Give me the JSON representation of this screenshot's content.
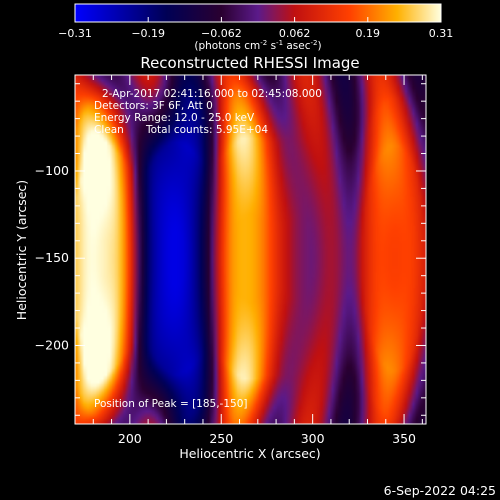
{
  "chart_data": {
    "type": "heatmap",
    "title": "Reconstructed RHESSI Image",
    "xlabel": "Heliocentric X (arcsec)",
    "ylabel": "Heliocentric Y (arcsec)",
    "xlim": [
      170,
      362
    ],
    "ylim": [
      -245,
      -45
    ],
    "xticks": [
      200,
      250,
      300,
      350
    ],
    "yticks": [
      -100,
      -150,
      -200
    ],
    "colorbar": {
      "range": [
        -0.31,
        0.31
      ],
      "ticks": [
        "-0.31",
        "-0.19",
        "-0.062",
        "0.062",
        "0.19",
        "0.31"
      ],
      "unit_label": "(photons cm",
      "unit_exp1": "-2",
      "unit_mid": " s",
      "unit_exp2": "-1",
      "unit_end": " asec",
      "unit_exp3": "-2",
      "unit_close": ")",
      "colormap": "blue-black-purple-red-orange-yellow-white"
    },
    "annotations": {
      "time_range": "2-Apr-2017 02:41:16.000 to 02:45:08.000",
      "detectors": "Detectors: 3F 6F, Att 0",
      "energy": "Energy Range: 12.0 - 25.0 keV",
      "clean_label": "Clean",
      "total_counts": "Total counts: 5.95E+04",
      "peak": "Position of Peak = [185,-150]"
    },
    "features": [
      {
        "x": 185,
        "y": -150,
        "value": 0.31
      },
      {
        "x": 225,
        "y": -150,
        "value": -0.31
      },
      {
        "x": 263,
        "y": -150,
        "value": 0.27
      },
      {
        "x": 295,
        "y": -150,
        "value": 0.0
      },
      {
        "x": 345,
        "y": -150,
        "value": 0.15
      }
    ],
    "peak_position": [
      185,
      -150
    ]
  },
  "footer": {
    "date": "6-Sep-2022 04:25"
  }
}
